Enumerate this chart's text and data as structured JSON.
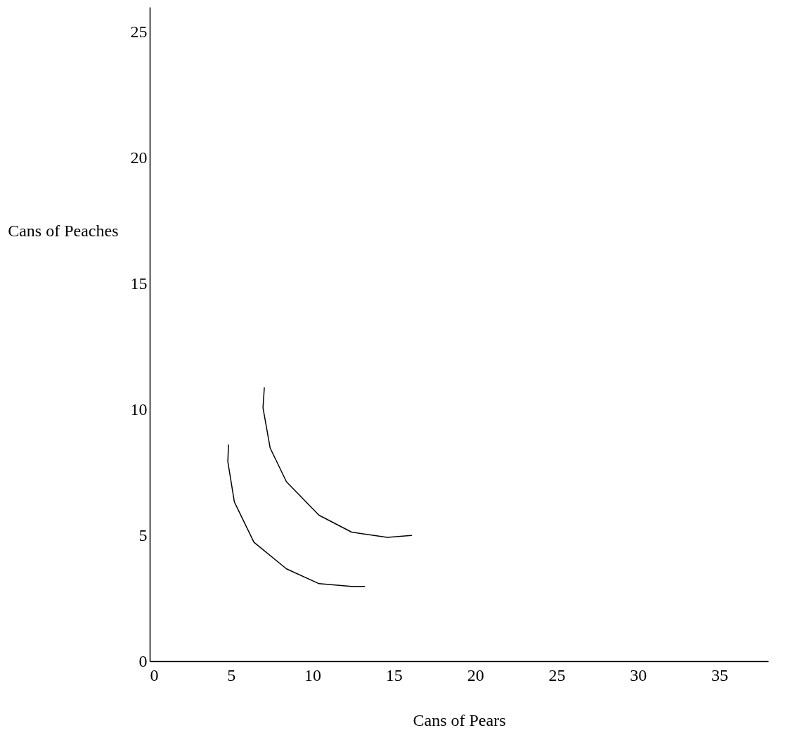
{
  "chart_data": {
    "type": "line",
    "xlabel": "Cans of Pears",
    "ylabel": "Cans of Peaches",
    "series": [
      {
        "color": "#000000",
        "x": [
          4.84,
          4.8,
          5.2,
          6.4,
          8.4,
          10.4,
          12.4,
          13.2
        ],
        "values": [
          8.6,
          7.93,
          6.33,
          4.73,
          3.67,
          3.08,
          2.97,
          2.97
        ]
      },
      {
        "color": "#000000",
        "x": [
          7.04,
          6.96,
          7.4,
          8.4,
          10.4,
          12.4,
          14.6,
          16.08
        ],
        "values": [
          10.87,
          10.07,
          8.47,
          7.13,
          5.8,
          5.13,
          4.92,
          5.0
        ]
      }
    ],
    "xlim": [
      0,
      38
    ],
    "xticks": [
      0,
      5,
      10,
      15,
      20,
      25,
      30,
      35
    ],
    "ylim": [
      0,
      26
    ],
    "yticks": [
      0,
      5,
      10,
      15,
      20,
      25
    ],
    "grid": false,
    "legend": false,
    "marker": "none",
    "line_style": "solid"
  }
}
